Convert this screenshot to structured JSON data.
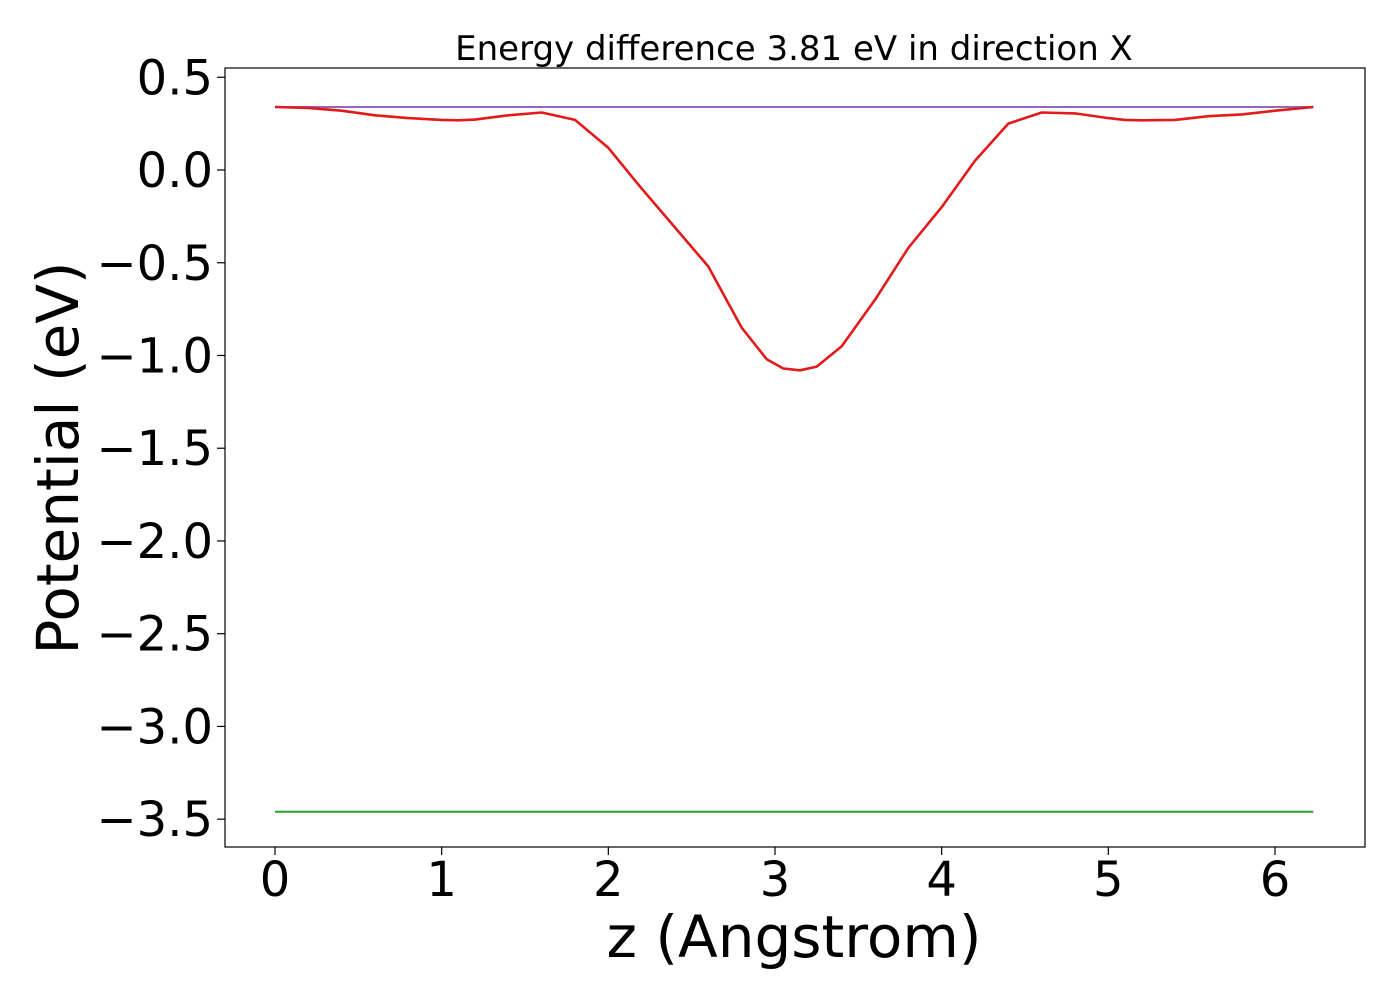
{
  "chart_data": {
    "type": "line",
    "title": "Energy difference 3.81 eV in direction X",
    "xlabel": "z (Angstrom)",
    "ylabel": "Potential (eV)",
    "xlim": [
      -0.3,
      6.54
    ],
    "ylim": [
      -3.65,
      0.55
    ],
    "xticks": [
      0,
      1,
      2,
      3,
      4,
      5,
      6
    ],
    "xtick_labels": [
      "0",
      "1",
      "2",
      "3",
      "4",
      "5",
      "6"
    ],
    "yticks": [
      0.5,
      0.0,
      -0.5,
      -1.0,
      -1.5,
      -2.0,
      -2.5,
      -3.0,
      -3.5
    ],
    "ytick_labels": [
      "0.5",
      "0.0",
      "−0.5",
      "−1.0",
      "−1.5",
      "−2.0",
      "−2.5",
      "−3.0",
      "−3.5"
    ],
    "grid": false,
    "series": [
      {
        "color": "#1f77b4",
        "x": [
          0.0,
          6.23
        ],
        "y": [
          0.34,
          0.34
        ]
      },
      {
        "color": "#2ca02c",
        "x": [
          0.0,
          6.23
        ],
        "y": [
          -3.46,
          -3.46
        ]
      },
      {
        "color": "#9467bd",
        "x": [
          0.0,
          0.3,
          5.93,
          6.23
        ],
        "y": [
          0.34,
          0.34,
          0.34,
          0.34
        ]
      },
      {
        "color": "#e31a1c",
        "x": [
          0.0,
          0.2,
          0.4,
          0.6,
          0.8,
          1.0,
          1.1,
          1.2,
          1.4,
          1.6,
          1.8,
          2.0,
          2.2,
          2.4,
          2.6,
          2.8,
          2.95,
          3.05,
          3.15,
          3.25,
          3.4,
          3.6,
          3.8,
          4.0,
          4.2,
          4.4,
          4.6,
          4.8,
          5.0,
          5.1,
          5.2,
          5.4,
          5.6,
          5.8,
          6.0,
          6.23
        ],
        "y": [
          0.34,
          0.335,
          0.32,
          0.295,
          0.28,
          0.27,
          0.268,
          0.272,
          0.295,
          0.31,
          0.27,
          0.12,
          -0.1,
          -0.31,
          -0.52,
          -0.85,
          -1.02,
          -1.07,
          -1.08,
          -1.06,
          -0.95,
          -0.7,
          -0.42,
          -0.2,
          0.05,
          0.25,
          0.31,
          0.305,
          0.28,
          0.27,
          0.268,
          0.27,
          0.29,
          0.3,
          0.32,
          0.34
        ]
      }
    ]
  }
}
